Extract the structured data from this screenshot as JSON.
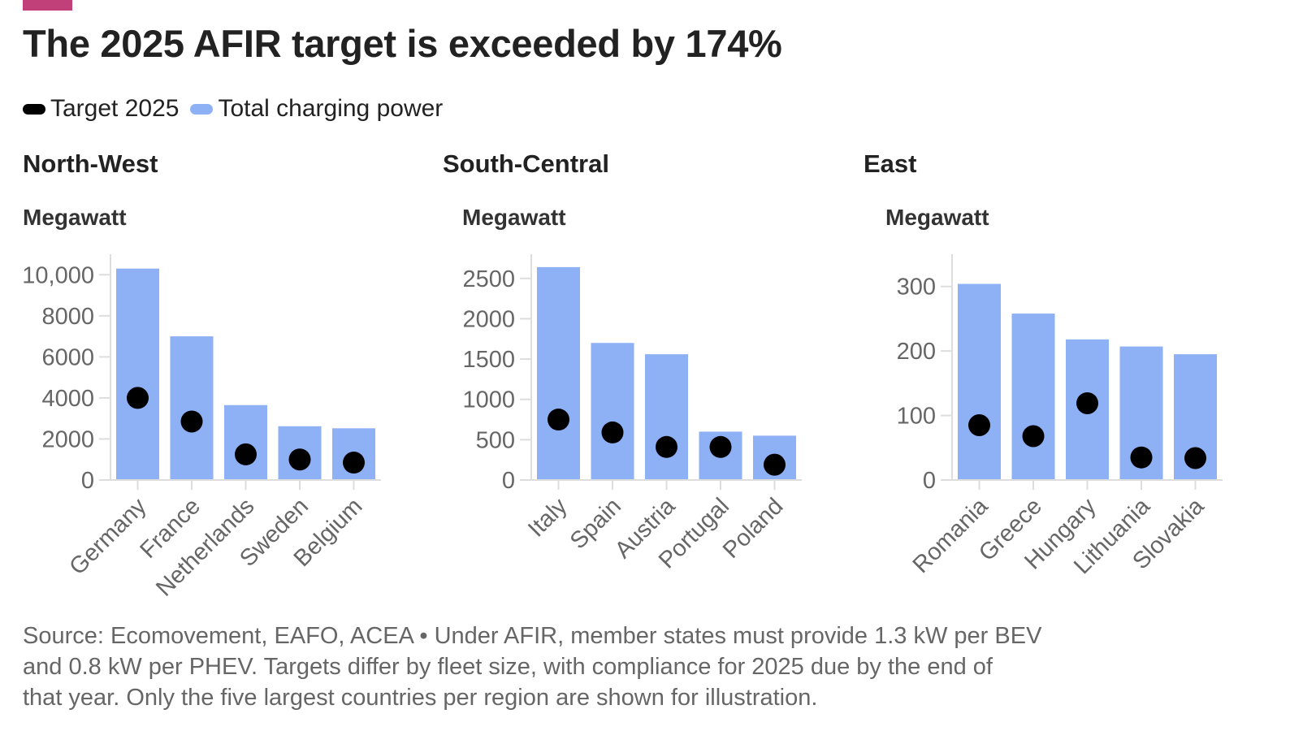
{
  "colors": {
    "accent": "#c2407a",
    "bar": "#8eb0f5",
    "target": "#000000",
    "axis": "#dddddd",
    "tick_text": "#666666"
  },
  "title": "The 2025 AFIR target is exceeded by 174%",
  "legend": [
    {
      "label": "Target 2025",
      "color": "#000000"
    },
    {
      "label": "Total charging power",
      "color": "#8eb0f5"
    }
  ],
  "chart_data": [
    {
      "type": "bar",
      "region": "North-West",
      "ylabel": "Megawatt",
      "categories": [
        "Germany",
        "France",
        "Netherlands",
        "Sweden",
        "Belgium"
      ],
      "series": [
        {
          "name": "Total charging power",
          "values": [
            10300,
            7000,
            3650,
            2620,
            2520
          ]
        },
        {
          "name": "Target 2025",
          "values": [
            4000,
            2850,
            1250,
            1000,
            850
          ]
        }
      ],
      "ylim": [
        0,
        11000
      ],
      "yticks": [
        0,
        2000,
        4000,
        6000,
        8000,
        10000
      ],
      "ytick_labels": [
        "0",
        "2000",
        "4000",
        "6000",
        "8000",
        "10,000"
      ]
    },
    {
      "type": "bar",
      "region": "South-Central",
      "ylabel": "Megawatt",
      "categories": [
        "Italy",
        "Spain",
        "Austria",
        "Portugal",
        "Poland"
      ],
      "series": [
        {
          "name": "Total charging power",
          "values": [
            2640,
            1700,
            1560,
            600,
            550
          ]
        },
        {
          "name": "Target 2025",
          "values": [
            750,
            590,
            410,
            410,
            190
          ]
        }
      ],
      "ylim": [
        0,
        2800
      ],
      "yticks": [
        0,
        500,
        1000,
        1500,
        2000,
        2500
      ],
      "ytick_labels": [
        "0",
        "500",
        "1000",
        "1500",
        "2000",
        "2500"
      ]
    },
    {
      "type": "bar",
      "region": "East",
      "ylabel": "Megawatt",
      "categories": [
        "Romania",
        "Greece",
        "Hungary",
        "Lithuania",
        "Slovakia"
      ],
      "series": [
        {
          "name": "Total charging power",
          "values": [
            304,
            258,
            218,
            207,
            195
          ]
        },
        {
          "name": "Target 2025",
          "values": [
            85,
            68,
            119,
            35,
            34
          ]
        }
      ],
      "ylim": [
        0,
        350
      ],
      "yticks": [
        0,
        100,
        200,
        300
      ],
      "ytick_labels": [
        "0",
        "100",
        "200",
        "300"
      ]
    }
  ],
  "footnote": {
    "line1": "Source: Ecomovement, EAFO, ACEA • Under AFIR, member states must provide 1.3 kW per BEV",
    "line2": "and 0.8 kW per PHEV. Targets differ by fleet size, with compliance for 2025 due by the end of",
    "line3": "that year. Only the five largest countries per region are shown for illustration."
  }
}
